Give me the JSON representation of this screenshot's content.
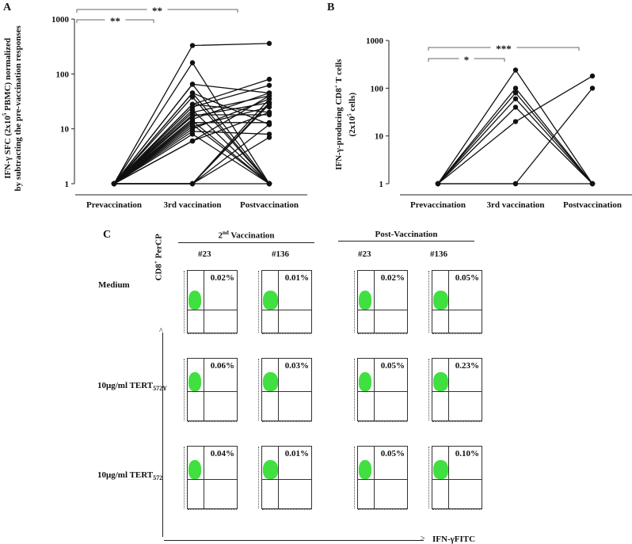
{
  "panel_labels": {
    "a": "A",
    "b": "B",
    "c": "C"
  },
  "chart_data": [
    {
      "type": "line",
      "panel": "A",
      "ylabel_line1": "IFN-γ SFC (2x10",
      "ylabel_sup": "5",
      "ylabel_line1b": " PBMC) normalized",
      "ylabel_line2": "by subtracting the pre-vaccination responses",
      "yscale": "log",
      "ylim": [
        1,
        1000
      ],
      "yticks": [
        "1",
        "10",
        "100",
        "1000"
      ],
      "categories": [
        "Prevaccination",
        "3rd vaccination",
        "Postvaccination"
      ],
      "significance": [
        {
          "from": "Prevaccination",
          "to": "3rd vaccination",
          "label": "**"
        },
        {
          "from": "Prevaccination",
          "to": "Postvaccination",
          "label": "**"
        }
      ],
      "series": [
        [
          1,
          330,
          360
        ],
        [
          1,
          160,
          1
        ],
        [
          1,
          65,
          1
        ],
        [
          1,
          65,
          45
        ],
        [
          1,
          45,
          12
        ],
        [
          1,
          45,
          1
        ],
        [
          1,
          38,
          1
        ],
        [
          1,
          28,
          80
        ],
        [
          1,
          28,
          20
        ],
        [
          1,
          25,
          62
        ],
        [
          1,
          22,
          1
        ],
        [
          1,
          20,
          40
        ],
        [
          1,
          18,
          18
        ],
        [
          1,
          17,
          30
        ],
        [
          1,
          15,
          45
        ],
        [
          1,
          14,
          1
        ],
        [
          1,
          13,
          13
        ],
        [
          1,
          12,
          1
        ],
        [
          1,
          11,
          25
        ],
        [
          1,
          10,
          35
        ],
        [
          1,
          9,
          8
        ],
        [
          1,
          8,
          1
        ],
        [
          1,
          6,
          20
        ],
        [
          1,
          6,
          40
        ],
        [
          1,
          1,
          35
        ],
        [
          1,
          1,
          30
        ],
        [
          1,
          1,
          12
        ],
        [
          1,
          1,
          7
        ],
        [
          1,
          1,
          28
        ],
        [
          1,
          1,
          1
        ]
      ]
    },
    {
      "type": "line",
      "panel": "B",
      "ylabel_line1": "IFN-γ-producing CD8",
      "ylabel_sup1": "+",
      "ylabel_line1b": " T cells",
      "ylabel_line2": "(2x10",
      "ylabel_sup2": "5",
      "ylabel_line2b": " cells)",
      "yscale": "log",
      "ylim": [
        1,
        1000
      ],
      "yticks": [
        "1",
        "10",
        "100",
        "1000"
      ],
      "categories": [
        "Prevaccination",
        "3rd vaccination",
        "Postvaccination"
      ],
      "significance": [
        {
          "from": "Prevaccination",
          "to": "3rd vaccination",
          "label": "*"
        },
        {
          "from": "Prevaccination",
          "to": "Postvaccination",
          "label": "***"
        }
      ],
      "series": [
        [
          1,
          240,
          1
        ],
        [
          1,
          100,
          1
        ],
        [
          1,
          80,
          1
        ],
        [
          1,
          60,
          1
        ],
        [
          1,
          40,
          1
        ],
        [
          1,
          20,
          180
        ],
        [
          1,
          1,
          100
        ],
        [
          1,
          1,
          1
        ]
      ]
    }
  ],
  "panel_c": {
    "groups": [
      "2nd Vaccination",
      "Post-Vaccination"
    ],
    "group_sup": "nd",
    "columns": [
      "#23",
      "#136",
      "#23",
      "#136"
    ],
    "rows": [
      {
        "label": "Medium",
        "sub": "",
        "values": [
          "0.02%",
          "0.01%",
          "0.02%",
          "0.05%"
        ]
      },
      {
        "label": "10μg/ml TERT",
        "sub": "572Y",
        "values": [
          "0.06%",
          "0.03%",
          "0.05%",
          "0.23%"
        ]
      },
      {
        "label": "10μg/ml TERT",
        "sub": "572",
        "values": [
          "0.04%",
          "0.01%",
          "0.05%",
          "0.10%"
        ]
      }
    ],
    "y_axis_label": "CD8",
    "y_axis_sup": "+",
    "y_axis_label_b": " PerCP",
    "x_axis_label": "IFN-γFITC",
    "dot_color": "#3fe03f"
  }
}
